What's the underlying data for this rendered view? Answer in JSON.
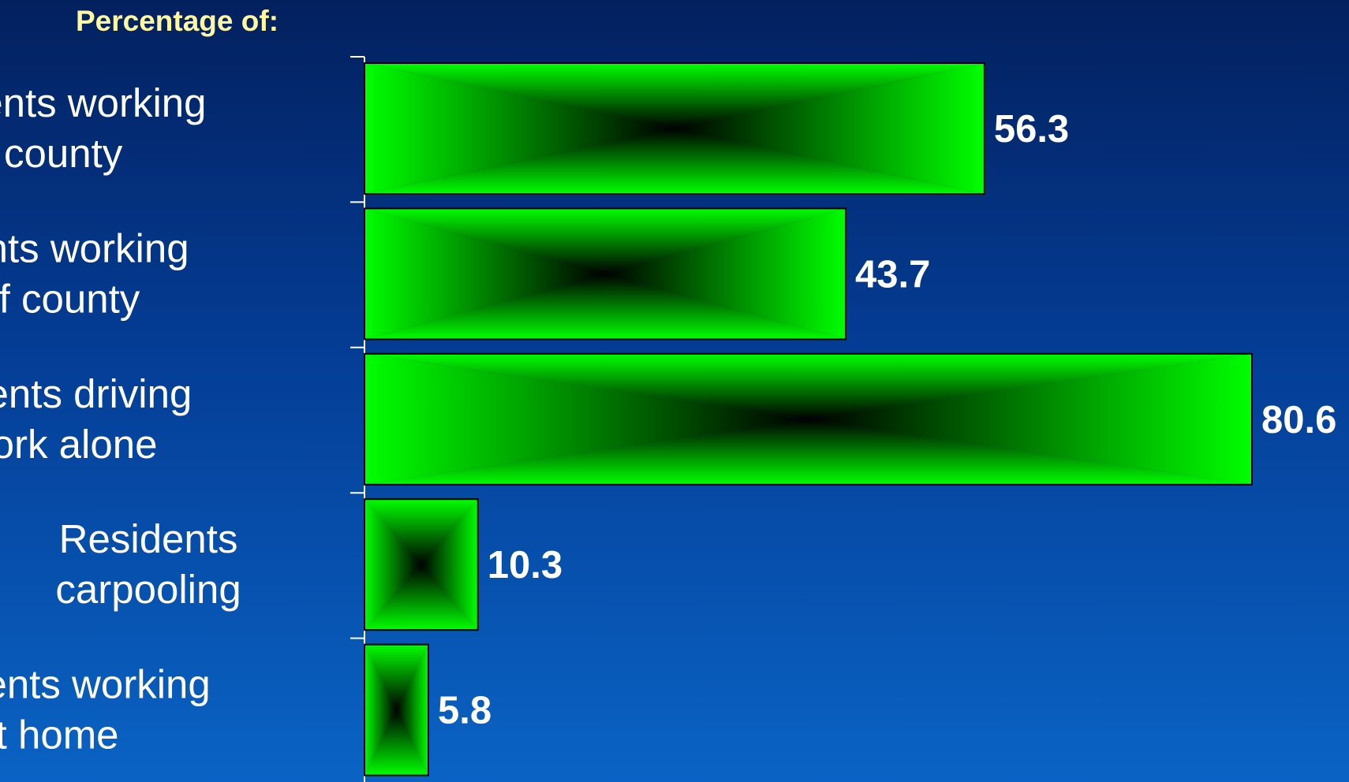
{
  "chart_data": {
    "type": "bar",
    "orientation": "horizontal",
    "title": "Percentage of:",
    "categories": [
      [
        "Residents working",
        "in county"
      ],
      [
        "Residents working",
        "out of county"
      ],
      [
        "Residents driving",
        "to work alone"
      ],
      [
        "Residents",
        "carpooling"
      ],
      [
        "Residents working",
        "at home"
      ]
    ],
    "values": [
      56.3,
      43.7,
      80.6,
      10.3,
      5.8
    ],
    "value_labels": [
      "56.3",
      "43.7",
      "80.6",
      "10.3",
      "5.8"
    ],
    "xlabel": "",
    "ylabel": "",
    "xlim": [
      0,
      100
    ],
    "grid": false,
    "legend": "none",
    "colors": {
      "bar_edge": "#00ff00",
      "bar_center": "#000000",
      "bar_outline": "#000000",
      "title": "#fff7a0",
      "labels": "#ffffff"
    }
  }
}
